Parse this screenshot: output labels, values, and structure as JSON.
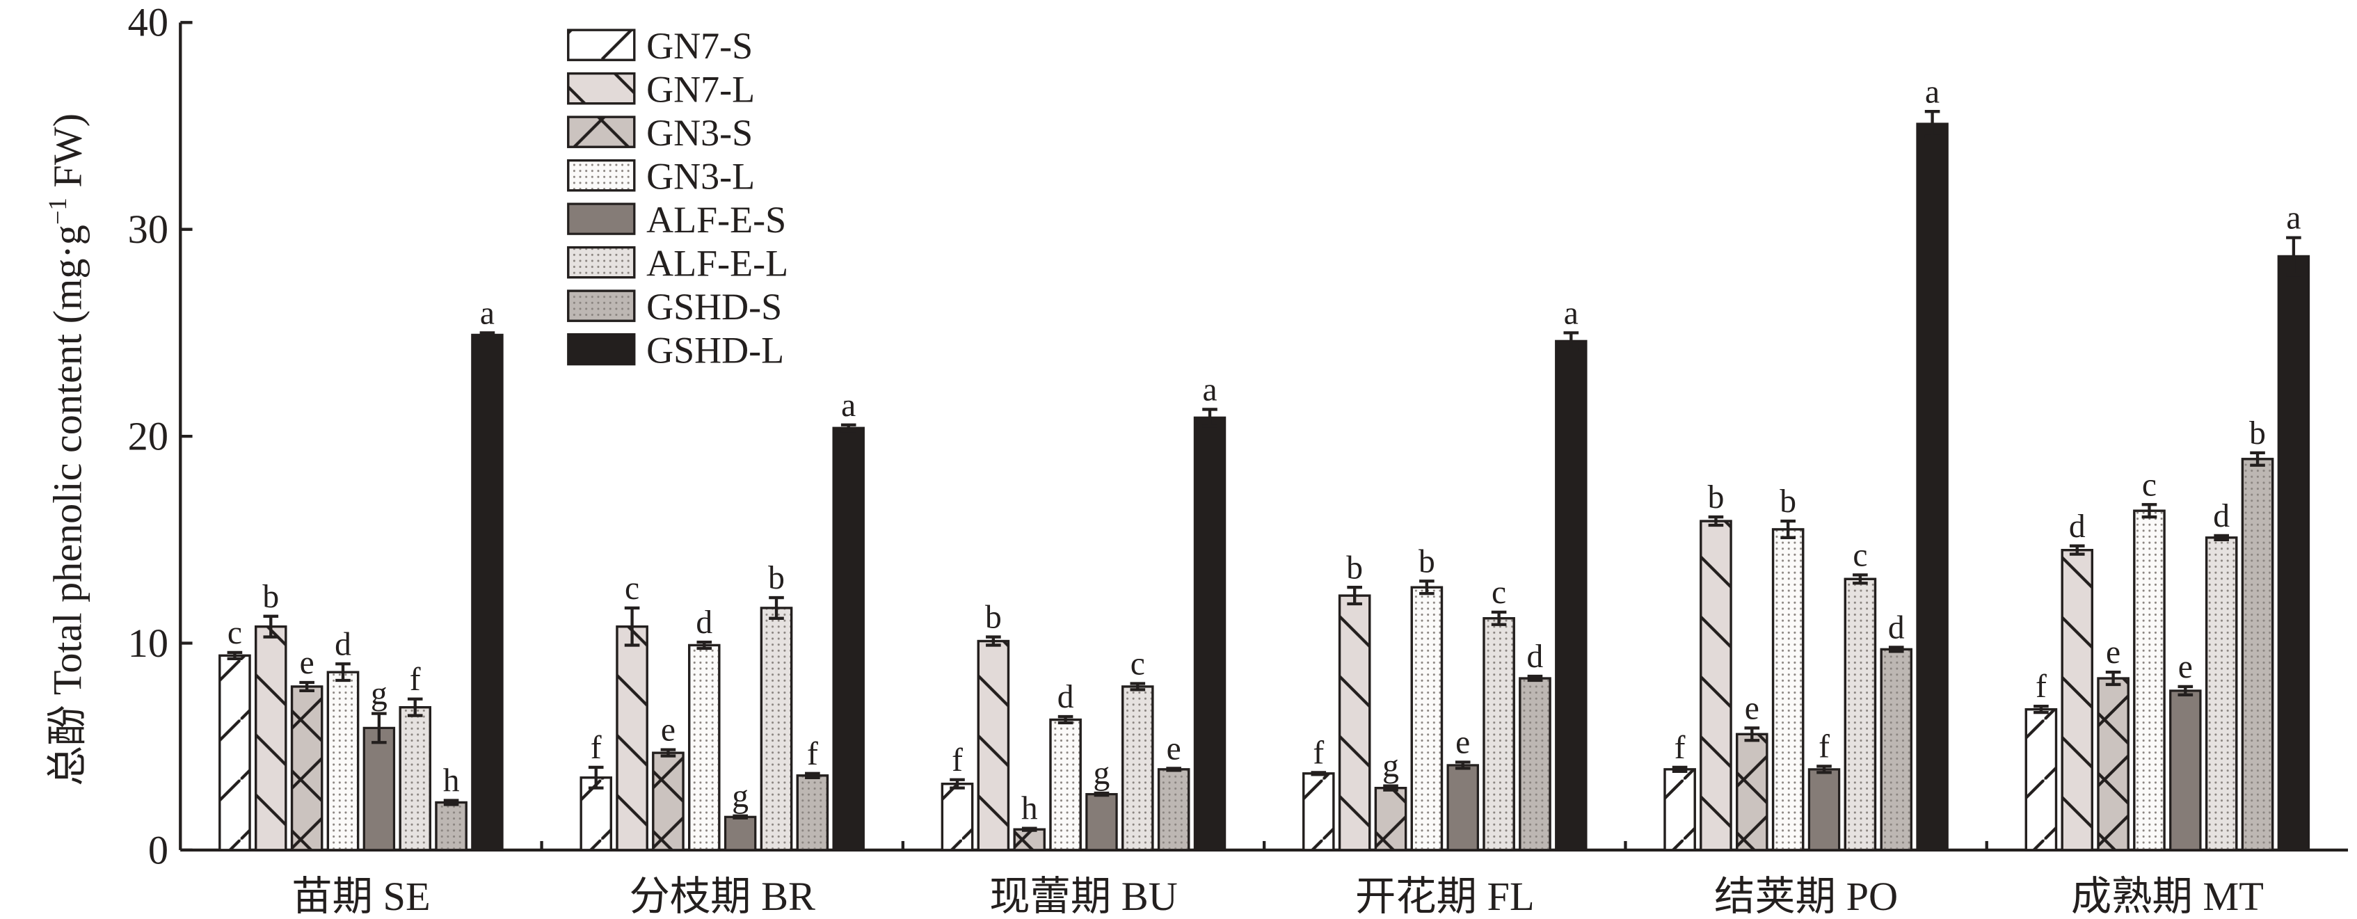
{
  "chart_data": {
    "type": "bar",
    "y_label": [
      "总酚 Total phenolic content (mg·g",
      "−1",
      " FW)"
    ],
    "categories": [
      "苗期 SE",
      "分枝期 BR",
      "现蕾期 BU",
      "开花期 FL",
      "结荚期 PO",
      "成熟期 MT"
    ],
    "ylim": [
      0,
      40
    ],
    "yticks": [
      0,
      10,
      20,
      30,
      40
    ],
    "grid": false,
    "legend": "top-left",
    "series": [
      {
        "name": "GN7-S",
        "color": "#ffffff",
        "pattern": "slash",
        "values": [
          9.4,
          3.5,
          3.2,
          3.7,
          3.9,
          6.8
        ],
        "errors": [
          0.15,
          0.5,
          0.2,
          0.05,
          0.1,
          0.15
        ],
        "labels": [
          "c",
          "f",
          "f",
          "f",
          "f",
          "f"
        ]
      },
      {
        "name": "GN7-L",
        "color": "#e2dad8",
        "pattern": "backslash",
        "values": [
          10.8,
          10.8,
          10.1,
          12.3,
          15.9,
          14.5
        ],
        "errors": [
          0.5,
          0.9,
          0.2,
          0.4,
          0.2,
          0.2
        ],
        "labels": [
          "b",
          "c",
          "b",
          "b",
          "b",
          "d"
        ]
      },
      {
        "name": "GN3-S",
        "color": "#cbc3bf",
        "pattern": "cross",
        "values": [
          7.9,
          4.7,
          1.0,
          3.0,
          5.6,
          8.3
        ],
        "errors": [
          0.2,
          0.15,
          0.05,
          0.1,
          0.3,
          0.3
        ],
        "labels": [
          "e",
          "e",
          "h",
          "g",
          "e",
          "e"
        ]
      },
      {
        "name": "GN3-L",
        "color": "#fbfaf9",
        "pattern": "dots",
        "values": [
          8.6,
          9.9,
          6.3,
          12.7,
          15.5,
          16.4
        ],
        "errors": [
          0.4,
          0.15,
          0.15,
          0.3,
          0.4,
          0.3
        ],
        "labels": [
          "d",
          "d",
          "d",
          "b",
          "b",
          "c"
        ]
      },
      {
        "name": "ALF-E-S",
        "color": "#857c77",
        "pattern": "none",
        "values": [
          5.9,
          1.6,
          2.7,
          4.1,
          3.9,
          7.7
        ],
        "errors": [
          0.7,
          0.05,
          0.05,
          0.15,
          0.15,
          0.2
        ],
        "labels": [
          "g",
          "g",
          "g",
          "e",
          "f",
          "e"
        ]
      },
      {
        "name": "ALF-E-L",
        "color": "#e6e2e0",
        "pattern": "dots",
        "values": [
          6.9,
          11.7,
          7.9,
          11.2,
          13.1,
          15.1
        ],
        "errors": [
          0.4,
          0.5,
          0.15,
          0.3,
          0.2,
          0.1
        ],
        "labels": [
          "f",
          "b",
          "c",
          "c",
          "c",
          "d"
        ]
      },
      {
        "name": "GSHD-S",
        "color": "#bdb7b3",
        "pattern": "dots",
        "values": [
          2.3,
          3.6,
          3.9,
          8.3,
          9.7,
          18.9
        ],
        "errors": [
          0.1,
          0.1,
          0.05,
          0.1,
          0.1,
          0.3
        ],
        "labels": [
          "h",
          "f",
          "e",
          "d",
          "d",
          "b"
        ]
      },
      {
        "name": "GSHD-L",
        "color": "#231f1e",
        "pattern": "none",
        "values": [
          24.9,
          20.4,
          20.9,
          24.6,
          35.1,
          28.7
        ],
        "errors": [
          0.1,
          0.15,
          0.4,
          0.4,
          0.6,
          0.9
        ],
        "labels": [
          "a",
          "a",
          "a",
          "a",
          "a",
          "a"
        ]
      }
    ]
  }
}
